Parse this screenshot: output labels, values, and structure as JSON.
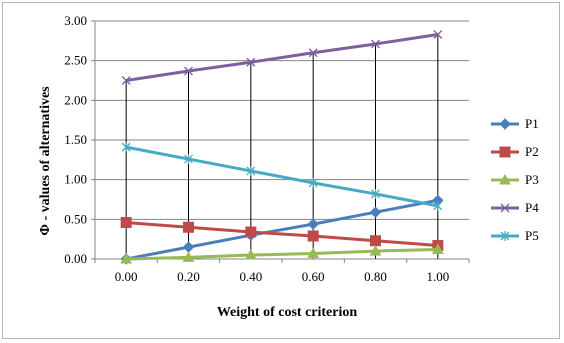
{
  "chart_data": {
    "type": "line",
    "title": "",
    "xlabel": "Weight of cost criterion",
    "ylabel": "Φ - values of alternatives",
    "categories": [
      "0.00",
      "0.20",
      "0.40",
      "0.60",
      "0.80",
      "1.00"
    ],
    "x": [
      0,
      0.2,
      0.4,
      0.6,
      0.8,
      1.0
    ],
    "ylim": [
      0,
      3
    ],
    "yticks": [
      "0.00",
      "0.50",
      "1.00",
      "1.50",
      "2.00",
      "2.50",
      "3.00"
    ],
    "ytick_values": [
      0,
      0.5,
      1,
      1.5,
      2,
      2.5,
      3
    ],
    "grid": "horizontal gridlines plus vertical drop lines at each category",
    "legend_position": "right",
    "series": [
      {
        "name": "P1",
        "values": [
          0.0,
          0.15,
          0.3,
          0.44,
          0.59,
          0.74
        ],
        "color": "#4a7ebb",
        "marker": "diamond"
      },
      {
        "name": "P2",
        "values": [
          0.46,
          0.4,
          0.34,
          0.29,
          0.23,
          0.17
        ],
        "color": "#be4b48",
        "marker": "square"
      },
      {
        "name": "P3",
        "values": [
          0.0,
          0.02,
          0.05,
          0.07,
          0.1,
          0.12
        ],
        "color": "#98b954",
        "marker": "triangle"
      },
      {
        "name": "P4",
        "values": [
          2.25,
          2.37,
          2.48,
          2.6,
          2.71,
          2.83
        ],
        "color": "#7d60a0",
        "marker": "x"
      },
      {
        "name": "P5",
        "values": [
          1.41,
          1.26,
          1.11,
          0.96,
          0.82,
          0.67
        ],
        "color": "#46aac5",
        "marker": "asterisk"
      }
    ]
  }
}
